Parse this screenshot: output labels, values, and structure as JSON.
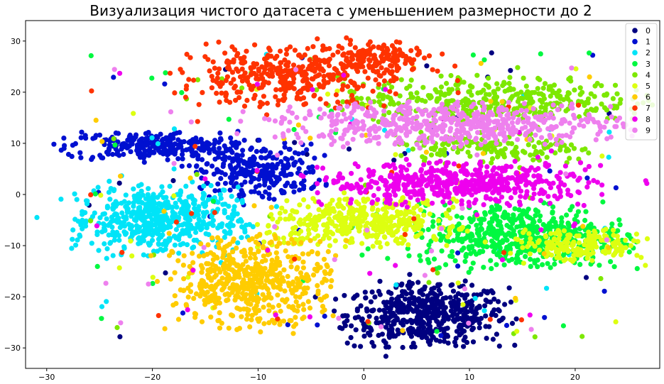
{
  "chart_data": {
    "type": "scatter",
    "title": "Визуализация чистого датасета с уменьшением размерности до 2",
    "xlabel": "",
    "ylabel": "",
    "xlim": [
      -32,
      28
    ],
    "ylim": [
      -34,
      34
    ],
    "xticks": [
      -30,
      -20,
      -10,
      0,
      10,
      20
    ],
    "xtick_labels": [
      "−30",
      "−20",
      "−10",
      "0",
      "10",
      "20"
    ],
    "yticks": [
      -30,
      -20,
      -10,
      0,
      10,
      20,
      30
    ],
    "ytick_labels": [
      "−30",
      "−20",
      "−10",
      "0",
      "10",
      "20",
      "30"
    ],
    "grid": false,
    "legend_position": "top-right",
    "series": [
      {
        "name": "0",
        "color": "#000080",
        "clusters": [
          {
            "cx": 6.0,
            "cy": -23.5,
            "sx": 3.8,
            "sy": 3.0,
            "n": 520
          }
        ]
      },
      {
        "name": "1",
        "color": "#0010d0",
        "clusters": [
          {
            "cx": -20.0,
            "cy": 9.5,
            "sx": 4.0,
            "sy": 1.4,
            "n": 260
          },
          {
            "cx": -10.0,
            "cy": 4.5,
            "sx": 3.0,
            "sy": 2.6,
            "n": 260
          }
        ]
      },
      {
        "name": "2",
        "color": "#00e4f8",
        "clusters": [
          {
            "cx": -19.5,
            "cy": -5.0,
            "sx": 3.8,
            "sy": 3.2,
            "n": 540
          }
        ]
      },
      {
        "name": "3",
        "color": "#00f840",
        "clusters": [
          {
            "cx": 15.0,
            "cy": -8.0,
            "sx": 4.8,
            "sy": 3.0,
            "n": 560
          }
        ]
      },
      {
        "name": "4",
        "color": "#7de800",
        "clusters": [
          {
            "cx": 12.0,
            "cy": 18.5,
            "sx": 7.0,
            "sy": 2.2,
            "n": 380
          },
          {
            "cx": 12.0,
            "cy": 9.0,
            "sx": 4.5,
            "sy": 1.5,
            "n": 150
          }
        ]
      },
      {
        "name": "5",
        "color": "#ddff10",
        "clusters": [
          {
            "cx": 0.0,
            "cy": -5.5,
            "sx": 4.5,
            "sy": 2.2,
            "n": 420
          },
          {
            "cx": 20.5,
            "cy": -10.0,
            "sx": 3.0,
            "sy": 1.6,
            "n": 180
          }
        ]
      },
      {
        "name": "6",
        "color": "#ffcc00",
        "clusters": [
          {
            "cx": -10.5,
            "cy": -17.0,
            "sx": 3.6,
            "sy": 4.2,
            "n": 520
          }
        ]
      },
      {
        "name": "7",
        "color": "#ff3300",
        "clusters": [
          {
            "cx": -7.5,
            "cy": 23.0,
            "sx": 5.0,
            "sy": 2.8,
            "n": 380
          },
          {
            "cx": 1.5,
            "cy": 27.0,
            "sx": 2.8,
            "sy": 1.6,
            "n": 140
          }
        ]
      },
      {
        "name": "8",
        "color": "#ee00ee",
        "clusters": [
          {
            "cx": 9.0,
            "cy": 2.0,
            "sx": 6.2,
            "sy": 2.0,
            "n": 520
          }
        ]
      },
      {
        "name": "9",
        "color": "#ee80ee",
        "clusters": [
          {
            "cx": 8.0,
            "cy": 13.8,
            "sx": 8.0,
            "sy": 2.0,
            "n": 560
          }
        ]
      }
    ]
  }
}
